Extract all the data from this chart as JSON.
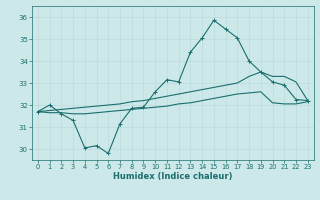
{
  "xlabel": "Humidex (Indice chaleur)",
  "bg_color": "#cde8e8",
  "line_color": "#1a6e6e",
  "grid_color": "#b8d8d8",
  "xlim": [
    -0.5,
    23.5
  ],
  "ylim": [
    29.5,
    36.5
  ],
  "yticks": [
    30,
    31,
    32,
    33,
    34,
    35,
    36
  ],
  "xticks": [
    0,
    1,
    2,
    3,
    4,
    5,
    6,
    7,
    8,
    9,
    10,
    11,
    12,
    13,
    14,
    15,
    16,
    17,
    18,
    19,
    20,
    21,
    22,
    23
  ],
  "line1_zigzag": [
    31.7,
    32.0,
    31.6,
    31.3,
    30.05,
    30.15,
    29.8,
    31.15,
    31.85,
    31.9,
    32.6,
    33.15,
    33.05,
    34.4,
    35.05,
    35.85,
    35.45,
    35.05,
    34.0,
    33.5,
    33.05,
    32.9,
    32.25,
    32.2
  ],
  "line2_smooth_low": [
    31.7,
    31.65,
    31.65,
    31.6,
    31.6,
    31.65,
    31.7,
    31.75,
    31.8,
    31.85,
    31.9,
    31.95,
    32.05,
    32.1,
    32.2,
    32.3,
    32.4,
    32.5,
    32.55,
    32.6,
    32.1,
    32.05,
    32.05,
    32.15
  ],
  "line3_smooth_high": [
    31.7,
    31.75,
    31.8,
    31.85,
    31.9,
    31.95,
    32.0,
    32.05,
    32.15,
    32.2,
    32.3,
    32.4,
    32.5,
    32.6,
    32.7,
    32.8,
    32.9,
    33.0,
    33.3,
    33.5,
    33.3,
    33.3,
    33.05,
    32.2
  ]
}
